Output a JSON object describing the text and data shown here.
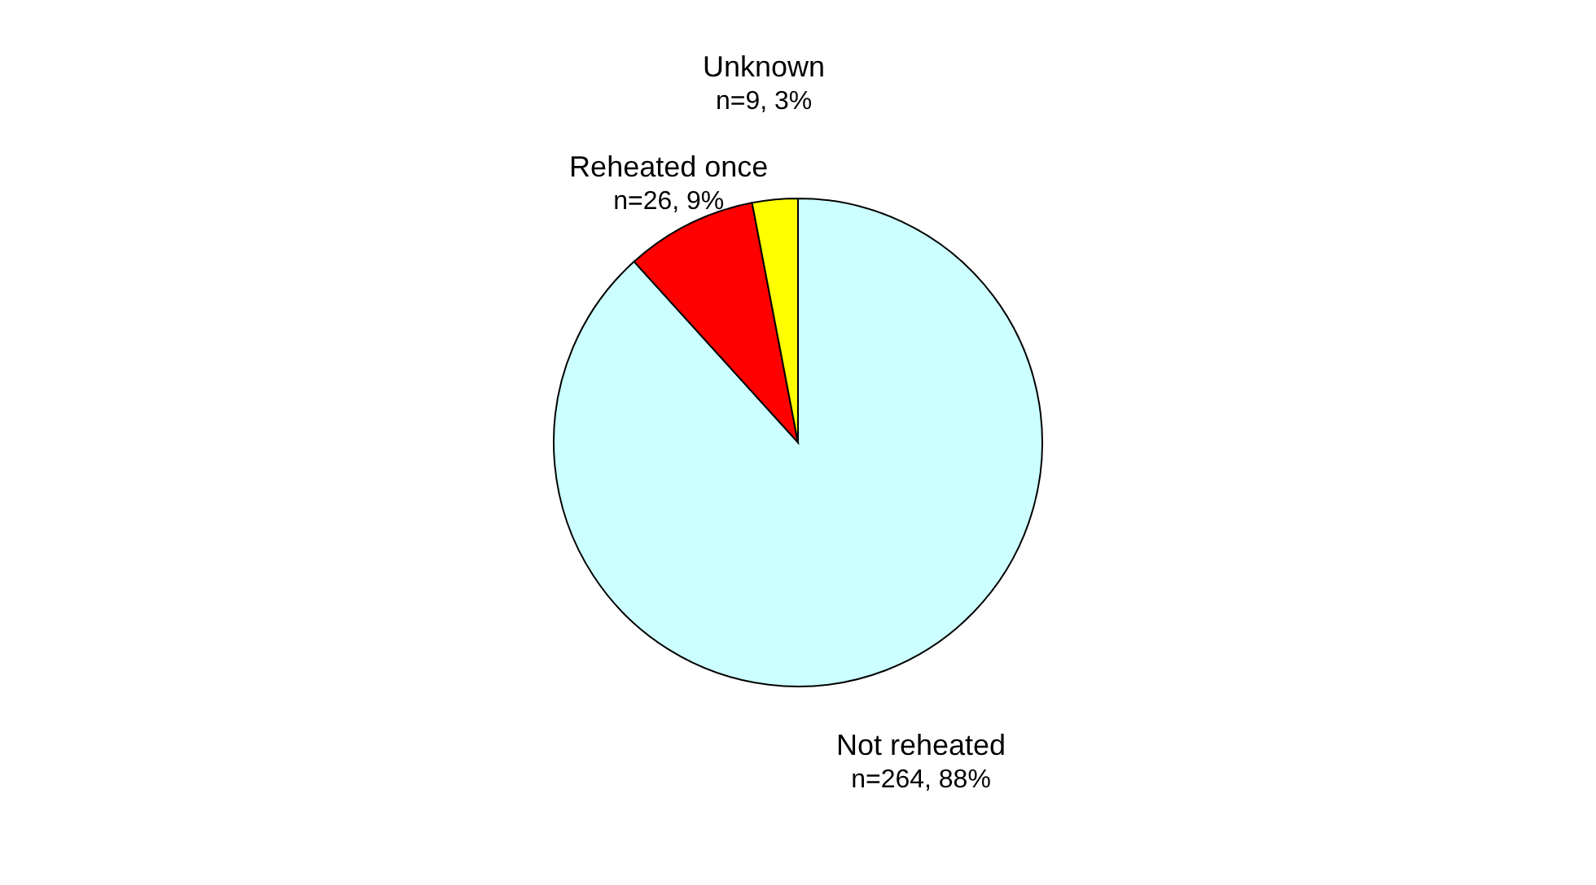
{
  "chart_data": {
    "type": "pie",
    "categories": [
      "Not reheated",
      "Reheated once",
      "Unknown"
    ],
    "values": [
      264,
      26,
      9
    ],
    "value_labels": [
      "n=264, 88%",
      "n=26, 9%",
      "n=9, 3%"
    ],
    "colors": [
      "#ccffff",
      "#ff0000",
      "#ffff00"
    ],
    "legend": false
  }
}
